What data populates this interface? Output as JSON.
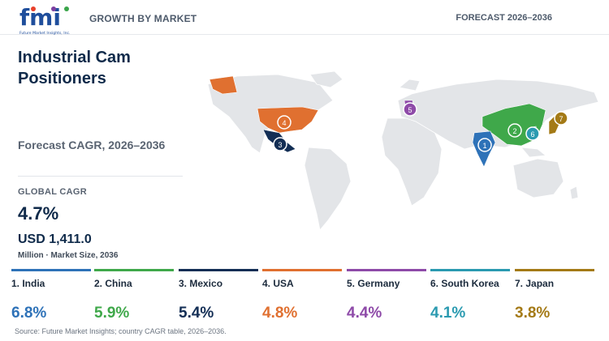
{
  "header": {
    "logo_text": "fmi",
    "logo_tagline": "Future Market Insights, Inc.",
    "section_label": "GROWTH BY MARKET",
    "forecast_label": "FORECAST 2026–2036"
  },
  "title": "Industrial Cam Positioners",
  "cagr_label": "Forecast CAGR, 2026–2036",
  "global": {
    "label": "GLOBAL CAGR",
    "value": "4.7%",
    "market_size": "USD 1,411.0",
    "market_size_sub": "Million · Market Size, 2036"
  },
  "countries": [
    {
      "rank": "1",
      "name": "1. India",
      "cagr": "6.8%",
      "color": "#2e72b8"
    },
    {
      "rank": "2",
      "name": "2. China",
      "cagr": "5.9%",
      "color": "#3fa84a"
    },
    {
      "rank": "3",
      "name": "3. Mexico",
      "cagr": "5.4%",
      "color": "#132e55"
    },
    {
      "rank": "4",
      "name": "4. USA",
      "cagr": "4.8%",
      "color": "#e07030"
    },
    {
      "rank": "5",
      "name": "5. Germany",
      "cagr": "4.4%",
      "color": "#8e4aa8"
    },
    {
      "rank": "6",
      "name": "6. South Korea",
      "cagr": "4.1%",
      "color": "#2a9ab0"
    },
    {
      "rank": "7",
      "name": "7. Japan",
      "cagr": "3.8%",
      "color": "#a47a16"
    }
  ],
  "source": "Source: Future Market Insights; country CAGR table, 2026–2036.",
  "icons": {
    "logo": "fmi-logo-icon",
    "map": "world-map-icon"
  }
}
